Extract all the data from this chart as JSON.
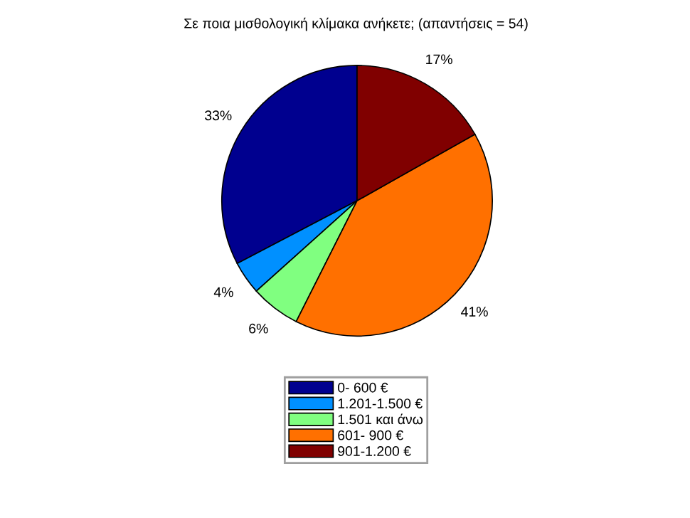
{
  "chart_data": {
    "type": "pie",
    "title": "Σε ποια μισθολογική κλίμακα ανήκετε; (απαντήσεις = 54)",
    "categories": [
      "0- 600 €",
      "1.201-1.500 €",
      "1.501 και άνω",
      "601- 900 €",
      "901-1.200 €"
    ],
    "values": [
      33,
      4,
      6,
      41,
      17
    ],
    "colors": [
      "#00008f",
      "#0090ff",
      "#80ff80",
      "#ff7000",
      "#800000"
    ],
    "value_labels": [
      "33%",
      "4%",
      "6%",
      "41%",
      "17%"
    ],
    "legend": "bottom"
  }
}
